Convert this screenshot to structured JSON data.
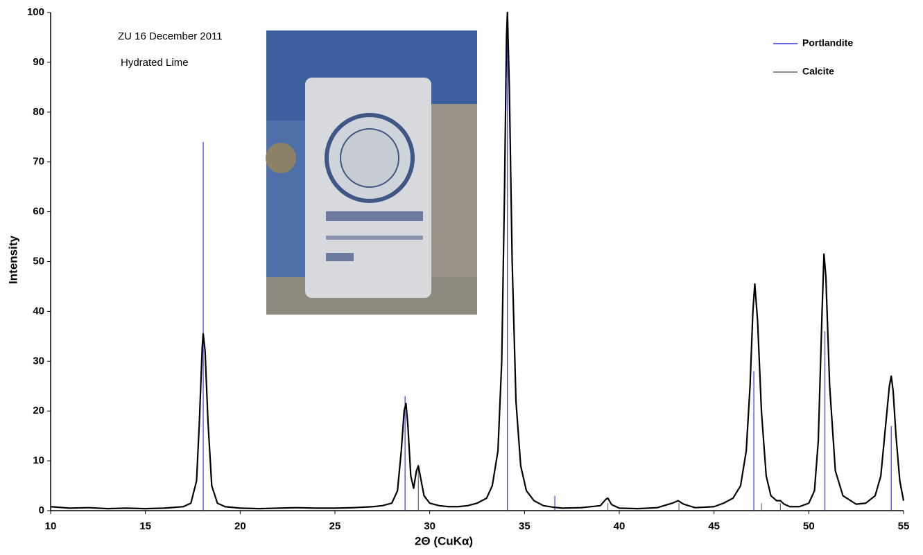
{
  "chart_data": {
    "type": "line",
    "annotations": [
      "ZU 16 December 2011",
      "Hydrated Lime"
    ],
    "xlabel": "2Θ (CuKα)",
    "ylabel": "Intensity",
    "xlim": [
      10,
      55
    ],
    "xticks": [
      10,
      15,
      20,
      25,
      30,
      35,
      40,
      45,
      50,
      55
    ],
    "ylim": [
      0,
      100
    ],
    "yticks": [
      0,
      10,
      20,
      30,
      40,
      50,
      60,
      70,
      80,
      90,
      100
    ],
    "color": "#000000",
    "x": [
      10,
      11,
      12,
      13,
      14,
      15,
      16,
      17,
      17.4,
      17.7,
      17.85,
      18.0,
      18.05,
      18.15,
      18.3,
      18.5,
      18.8,
      19.2,
      20,
      21,
      22,
      23,
      24,
      25,
      26,
      27,
      27.5,
      28,
      28.3,
      28.5,
      28.65,
      28.75,
      28.85,
      29.0,
      29.15,
      29.3,
      29.4,
      29.5,
      29.7,
      30,
      30.5,
      31,
      31.5,
      32,
      32.5,
      33,
      33.3,
      33.6,
      33.8,
      33.95,
      34.05,
      34.1,
      34.2,
      34.35,
      34.55,
      34.8,
      35.1,
      35.5,
      36,
      36.5,
      37,
      38,
      39,
      39.3,
      39.4,
      39.6,
      40,
      41,
      42,
      42.8,
      43.1,
      43.4,
      44,
      45,
      45.5,
      46,
      46.4,
      46.7,
      46.9,
      47.05,
      47.15,
      47.3,
      47.5,
      47.75,
      48,
      48.3,
      48.5,
      48.7,
      49,
      49.5,
      50,
      50.3,
      50.5,
      50.7,
      50.8,
      50.9,
      51.1,
      51.4,
      51.8,
      52.5,
      53,
      53.5,
      53.8,
      54.05,
      54.25,
      54.35,
      54.45,
      54.6,
      54.8,
      55
    ],
    "values": [
      0.8,
      0.5,
      0.6,
      0.4,
      0.5,
      0.4,
      0.5,
      0.8,
      1.5,
      6,
      18,
      33,
      35.5,
      32,
      18,
      5,
      1.5,
      0.8,
      0.5,
      0.4,
      0.5,
      0.6,
      0.5,
      0.5,
      0.6,
      0.8,
      1,
      1.5,
      4,
      12,
      20,
      21.5,
      17,
      7,
      4.5,
      8,
      9,
      7,
      3,
      1.5,
      1,
      0.8,
      0.8,
      1,
      1.5,
      2.5,
      5,
      12,
      30,
      65,
      95,
      100,
      85,
      50,
      22,
      9,
      4,
      2,
      1,
      0.7,
      0.5,
      0.6,
      1,
      2.3,
      2.5,
      1.2,
      0.5,
      0.4,
      0.6,
      1.5,
      2,
      1.3,
      0.6,
      0.8,
      1.5,
      2.5,
      5,
      12,
      25,
      40,
      45.5,
      38,
      20,
      7,
      3,
      2,
      2,
      1.3,
      0.8,
      0.8,
      1.5,
      4,
      14,
      40,
      51.5,
      47,
      25,
      8,
      3,
      1.3,
      1.5,
      3,
      7,
      17,
      25,
      27,
      24,
      15,
      6,
      2
    ],
    "series": [
      {
        "name": "Portlandite",
        "color": "#3333ff",
        "x": [
          18.05,
          28.7,
          34.1,
          36.6,
          47.1,
          50.85,
          54.35
        ],
        "values": [
          74,
          23,
          100,
          3,
          28,
          36,
          17
        ]
      },
      {
        "name": "Calcite",
        "color": "#666666",
        "x": [
          29.4,
          39.4,
          43.15,
          47.5,
          48.5
        ],
        "values": [
          9,
          1.5,
          1.5,
          1.5,
          1.5
        ]
      }
    ]
  }
}
